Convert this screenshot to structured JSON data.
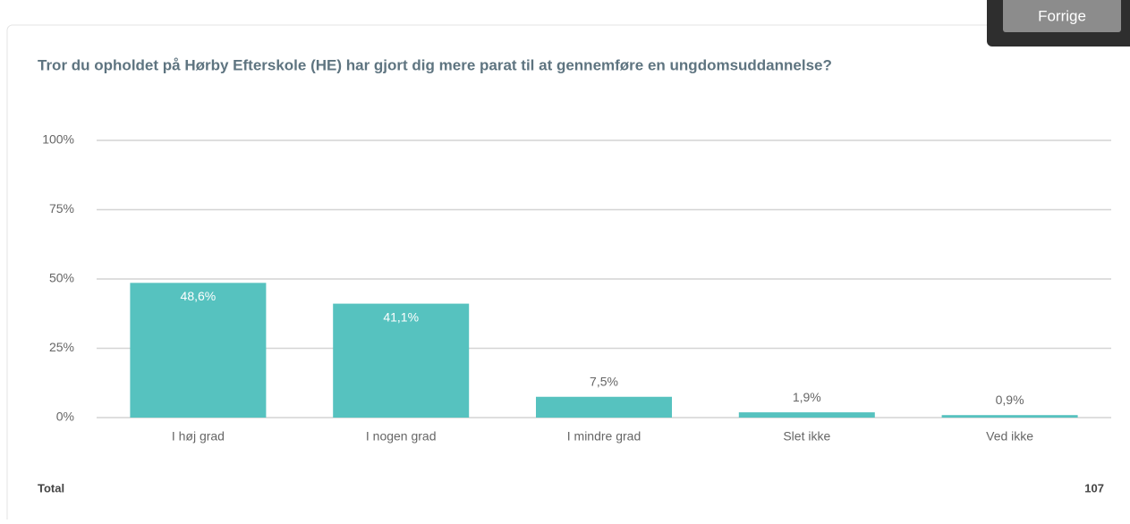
{
  "nav_button": "Forrige",
  "chart_data": {
    "type": "bar",
    "title": "Tror du opholdet på Hørby Efterskole (HE) har gjort dig mere parat til at gennemføre en ungdomsuddannelse?",
    "categories": [
      "I høj grad",
      "I nogen grad",
      "I mindre grad",
      "Slet ikke",
      "Ved ikke"
    ],
    "values": [
      48.6,
      41.1,
      7.5,
      1.9,
      0.9
    ],
    "value_labels": [
      "48,6%",
      "41,1%",
      "7,5%",
      "1,9%",
      "0,9%"
    ],
    "color": "#56c2bf",
    "ylim": [
      0,
      100
    ],
    "yticks": [
      {
        "value": 0,
        "label": "0%"
      },
      {
        "value": 25,
        "label": "25%"
      },
      {
        "value": 50,
        "label": "50%"
      },
      {
        "value": 75,
        "label": "75%"
      },
      {
        "value": 100,
        "label": "100%"
      }
    ],
    "grid": true,
    "total_label": "Total",
    "total": 107
  }
}
